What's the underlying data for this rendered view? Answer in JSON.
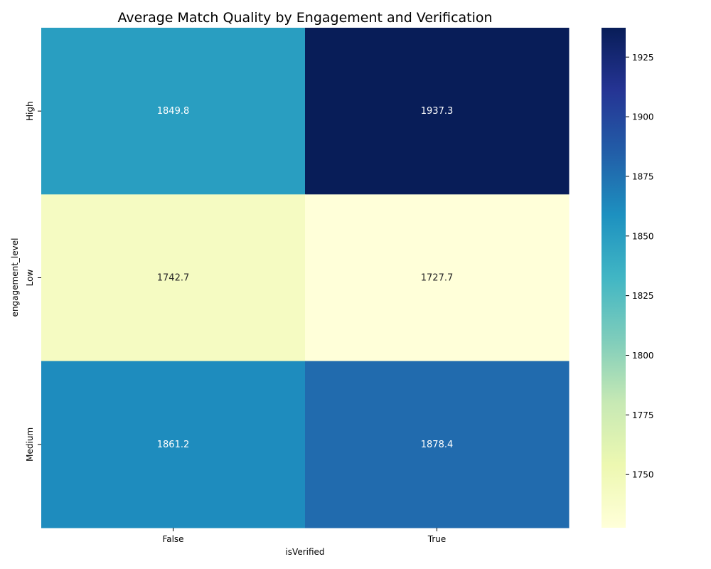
{
  "chart_data": {
    "type": "heatmap",
    "title": "Average Match Quality by Engagement and Verification",
    "xlabel": "isVerified",
    "ylabel": "engagement_level",
    "x_categories": [
      "False",
      "True"
    ],
    "y_categories": [
      "High",
      "Low",
      "Medium"
    ],
    "values": [
      [
        1849.8,
        1937.3
      ],
      [
        1742.7,
        1727.7
      ],
      [
        1861.2,
        1878.4
      ]
    ],
    "value_labels": [
      [
        "1849.8",
        "1937.3"
      ],
      [
        "1742.7",
        "1727.7"
      ],
      [
        "1861.2",
        "1878.4"
      ]
    ],
    "colormap": "YlGnBu",
    "color_range": [
      1727.7,
      1937.3
    ],
    "colorbar_ticks": [
      "1750",
      "1775",
      "1800",
      "1825",
      "1850",
      "1875",
      "1900",
      "1925"
    ],
    "colorbar_tick_values": [
      1750,
      1775,
      1800,
      1825,
      1850,
      1875,
      1900,
      1925
    ]
  }
}
